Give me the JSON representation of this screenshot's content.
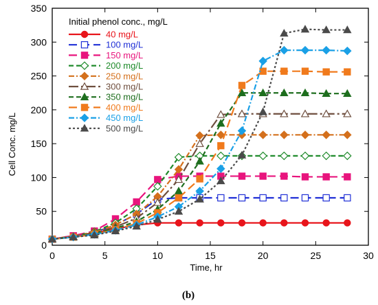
{
  "chart_data": {
    "type": "line",
    "xlabel": "Time, hr",
    "ylabel": "Cell Conc. mg/L",
    "xlim": [
      0,
      30
    ],
    "ylim": [
      0,
      350
    ],
    "xticks": [
      0,
      5,
      10,
      15,
      20,
      25,
      30
    ],
    "yticks": [
      0,
      50,
      100,
      150,
      200,
      250,
      300,
      350
    ],
    "grid": false,
    "legend_title": "Initial phenol conc., mg/L",
    "legend_position": "top-left",
    "caption": "(b)",
    "series": [
      {
        "name": "40 mg/L",
        "color": "#e8141b",
        "dash": "solid",
        "marker": "circle-filled",
        "x": [
          0,
          2,
          4,
          6,
          8,
          10,
          12,
          14,
          16,
          18,
          20,
          22,
          24,
          26,
          28
        ],
        "y": [
          9,
          14,
          18,
          24,
          30,
          33,
          33,
          33,
          33,
          33,
          33,
          33,
          33,
          33,
          33
        ]
      },
      {
        "name": "100 mg/L",
        "color": "#1f2fd6",
        "dash": "long-dash",
        "marker": "square-open",
        "x": [
          0,
          2,
          4,
          6,
          8,
          10,
          12,
          14,
          16,
          18,
          20,
          22,
          24,
          26,
          28
        ],
        "y": [
          9,
          14,
          19,
          30,
          46,
          68,
          70,
          70,
          70,
          70,
          70,
          70,
          70,
          70,
          70
        ]
      },
      {
        "name": "150 mg/L",
        "color": "#e8147d",
        "dash": "long-dash",
        "marker": "square-filled",
        "x": [
          0,
          2,
          4,
          6,
          8,
          10,
          12,
          14,
          16,
          18,
          20,
          22,
          24,
          26,
          28
        ],
        "y": [
          9,
          14,
          21,
          39,
          64,
          97,
          102,
          102,
          102,
          102,
          102,
          102,
          101,
          101,
          101
        ]
      },
      {
        "name": "200 mg/L",
        "color": "#1e8a2a",
        "dash": "dash",
        "marker": "diamond-open",
        "x": [
          0,
          2,
          4,
          6,
          8,
          10,
          12,
          14,
          16,
          18,
          20,
          22,
          24,
          26,
          28
        ],
        "y": [
          9,
          13,
          20,
          33,
          54,
          87,
          130,
          132,
          132,
          132,
          132,
          132,
          132,
          132,
          132
        ]
      },
      {
        "name": "250 mg/L",
        "color": "#d4701c",
        "dash": "dash-dot",
        "marker": "diamond-filled",
        "x": [
          0,
          2,
          4,
          6,
          8,
          10,
          12,
          14,
          16,
          18,
          20,
          22,
          24,
          26,
          28
        ],
        "y": [
          9,
          13,
          19,
          30,
          46,
          72,
          112,
          162,
          163,
          163,
          163,
          163,
          163,
          163,
          163
        ]
      },
      {
        "name": "300 mg/L",
        "color": "#6e4e3e",
        "dash": "long-dash-dot",
        "marker": "triangle-open",
        "x": [
          0,
          2,
          4,
          6,
          8,
          10,
          12,
          14,
          16,
          18,
          20,
          22,
          24,
          26,
          28
        ],
        "y": [
          9,
          13,
          18,
          27,
          40,
          63,
          97,
          150,
          193,
          194,
          194,
          194,
          194,
          194,
          194
        ]
      },
      {
        "name": "350 mg/L",
        "color": "#1e6e1e",
        "dash": "dash",
        "marker": "triangle-filled",
        "x": [
          0,
          2,
          4,
          6,
          8,
          10,
          12,
          14,
          16,
          18,
          20,
          22,
          24,
          26,
          28
        ],
        "y": [
          9,
          12,
          17,
          25,
          35,
          53,
          80,
          124,
          180,
          225,
          225,
          225,
          225,
          224,
          224
        ]
      },
      {
        "name": "400 mg/L",
        "color": "#f07a1c",
        "dash": "long-dash",
        "marker": "square-filled",
        "x": [
          0,
          2,
          4,
          6,
          8,
          10,
          12,
          14,
          16,
          18,
          20,
          22,
          24,
          26,
          28
        ],
        "y": [
          9,
          12,
          16,
          23,
          32,
          48,
          70,
          98,
          147,
          236,
          257,
          257,
          257,
          256,
          256
        ]
      },
      {
        "name": "450 mg/L",
        "color": "#1aa0e6",
        "dash": "dash-dot",
        "marker": "diamond-filled",
        "x": [
          0,
          2,
          4,
          6,
          8,
          10,
          12,
          14,
          16,
          18,
          20,
          22,
          24,
          26,
          28
        ],
        "y": [
          9,
          12,
          16,
          22,
          30,
          42,
          57,
          80,
          113,
          169,
          272,
          288,
          288,
          288,
          287
        ]
      },
      {
        "name": "500 mg/L",
        "color": "#4a4a4a",
        "dash": "dot",
        "marker": "triangle-filled",
        "x": [
          0,
          2,
          4,
          6,
          8,
          10,
          12,
          14,
          16,
          18,
          20,
          22,
          24,
          26,
          28
        ],
        "y": [
          9,
          12,
          15,
          21,
          28,
          38,
          50,
          68,
          95,
          133,
          197,
          313,
          319,
          318,
          318
        ]
      }
    ]
  }
}
